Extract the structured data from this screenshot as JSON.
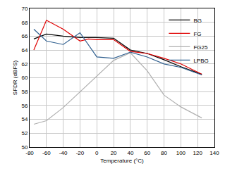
{
  "chart_data": {
    "type": "line",
    "x_label": "Temperature (°C)",
    "y_label": "SFDR (dBFS)",
    "series": [
      {
        "name": "BG",
        "color": "#000000",
        "x": [
          -75,
          -60,
          -40,
          -20,
          0,
          20,
          40,
          60,
          80,
          100,
          125
        ],
        "values": [
          65.6,
          66.3,
          66.0,
          65.8,
          65.8,
          65.7,
          64.0,
          63.5,
          62.6,
          61.6,
          60.5
        ]
      },
      {
        "name": "FG",
        "color": "#e00000",
        "x": [
          -75,
          -60,
          -40,
          -20,
          -10,
          0,
          20,
          40,
          60,
          80,
          100,
          125
        ],
        "values": [
          64.0,
          68.3,
          67.0,
          65.3,
          65.6,
          65.5,
          65.5,
          63.8,
          63.5,
          62.8,
          62.0,
          60.5
        ]
      },
      {
        "name": "FG25",
        "color": "#b0b0b0",
        "x": [
          -75,
          -60,
          -40,
          -20,
          0,
          20,
          40,
          60,
          80,
          100,
          125
        ],
        "values": [
          53.3,
          53.8,
          55.7,
          58.0,
          60.2,
          62.5,
          63.6,
          61.0,
          57.5,
          55.8,
          54.2
        ]
      },
      {
        "name": "LPBG",
        "color": "#2f5f8f",
        "x": [
          -75,
          -60,
          -40,
          -20,
          0,
          20,
          40,
          60,
          80,
          100,
          125
        ],
        "values": [
          67.0,
          65.3,
          64.8,
          66.5,
          63.0,
          62.8,
          63.7,
          63.0,
          62.0,
          61.5,
          60.4
        ]
      }
    ],
    "xlim": [
      -80,
      140
    ],
    "xticks": [
      -80,
      -60,
      -40,
      -20,
      0,
      20,
      40,
      60,
      80,
      100,
      120,
      140
    ],
    "ylim": [
      50,
      70
    ],
    "yticks": [
      50,
      52,
      54,
      56,
      58,
      60,
      62,
      64,
      66,
      68,
      70
    ],
    "grid": true,
    "legend": "top-right"
  }
}
